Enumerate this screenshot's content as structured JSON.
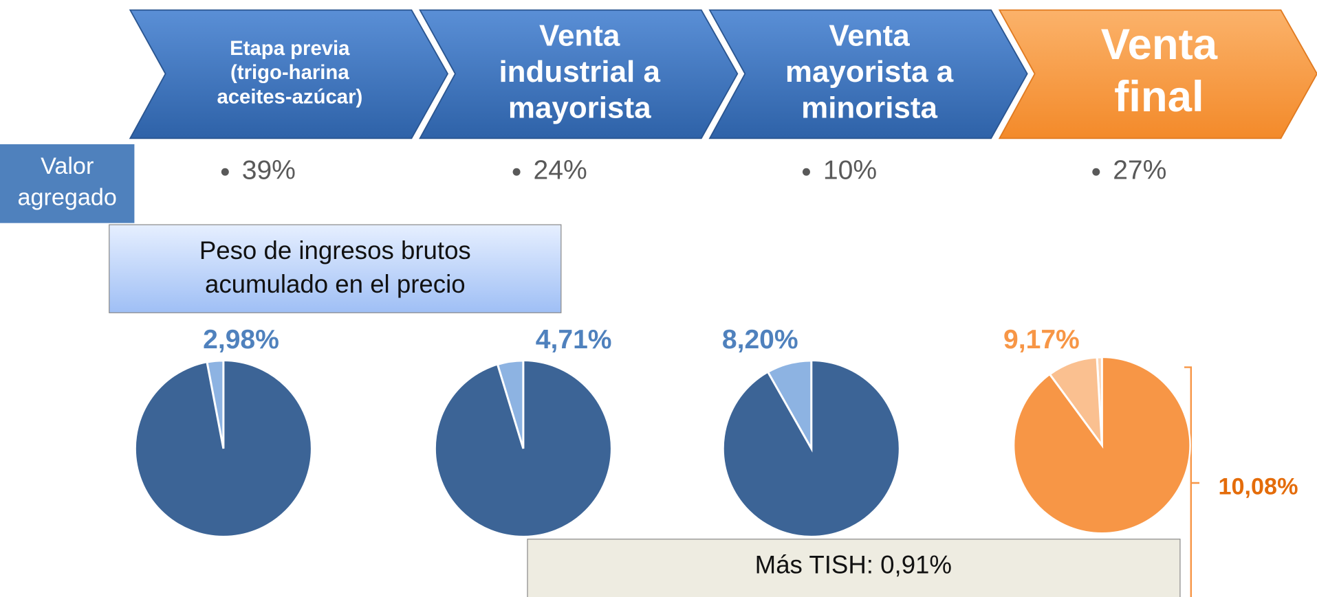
{
  "steps": [
    {
      "lines": [
        "Etapa previa",
        "(trigo-harina",
        "aceites-azúcar)"
      ]
    },
    {
      "lines": [
        "Venta",
        "industrial a",
        "mayorista"
      ]
    },
    {
      "lines": [
        "Venta",
        "mayorista a",
        "minorista"
      ]
    },
    {
      "lines": [
        "Venta",
        "final"
      ]
    }
  ],
  "valor_agregado": {
    "label_lines": [
      "Valor",
      "agregado"
    ],
    "items": [
      "39%",
      "24%",
      "10%",
      "27%"
    ]
  },
  "peso_box": {
    "lines": [
      "Peso de ingresos brutos",
      "acumulado en el precio"
    ]
  },
  "pies": {
    "values": [
      2.98,
      4.71,
      8.2,
      9.17
    ],
    "value_labels": [
      "2,98%",
      "4,71%",
      "8,20%",
      "9,17%"
    ]
  },
  "tish": {
    "label": "Más TISH: 0,91%",
    "value": 0.91
  },
  "total_label": "10,08%"
}
